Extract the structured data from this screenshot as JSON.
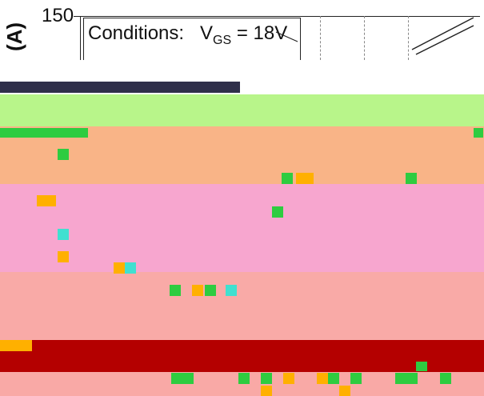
{
  "chart_data": {
    "type": "line",
    "title": "",
    "xlabel": "",
    "ylabel": "(A)",
    "y_ticks_visible": [
      "150"
    ],
    "annotation": {
      "conditions_label": "Conditions:",
      "vgs_prefix": "V",
      "vgs_sub": "GS",
      "vgs_value": "= 18V"
    },
    "grid": true,
    "note": ""
  },
  "colors": {
    "green": "#b8f58a",
    "orange": "#f9b487",
    "pink": "#f7a6cf",
    "salmon": "#f9aaa7",
    "darkred": "#b40000",
    "lightsalmon": "#f9a9a6"
  }
}
